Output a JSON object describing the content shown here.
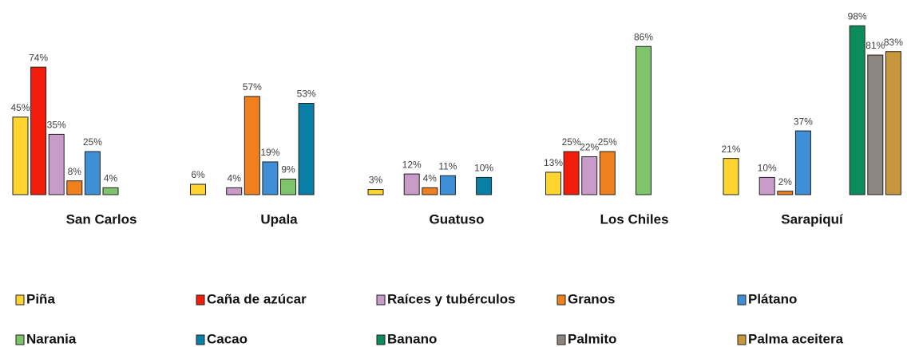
{
  "chart_data": {
    "type": "bar",
    "categories": [
      "San Carlos",
      "Upala",
      "Guatuso",
      "Los Chiles",
      "Sarapiquí"
    ],
    "ylim": [
      0,
      100
    ],
    "series": [
      {
        "name": "Piña",
        "color": "#FFD42E",
        "values": [
          45,
          6,
          3,
          13,
          21
        ],
        "value_labels": [
          "45%",
          "6%",
          "3%",
          "13%",
          "21%"
        ]
      },
      {
        "name": "Caña de azúcar",
        "color": "#F21C0A",
        "values": [
          74,
          null,
          null,
          25,
          null
        ],
        "value_labels": [
          "74%",
          null,
          null,
          "25%",
          null
        ]
      },
      {
        "name": "Raíces y tubérculos",
        "color": "#C89BC8",
        "values": [
          35,
          4,
          12,
          22,
          10
        ],
        "value_labels": [
          "35%",
          "4%",
          "12%",
          "22%",
          "10%"
        ]
      },
      {
        "name": "Granos",
        "color": "#F0801E",
        "values": [
          8,
          57,
          4,
          25,
          2
        ],
        "value_labels": [
          "8%",
          "57%",
          "4%",
          "25%",
          "2%"
        ]
      },
      {
        "name": "Plátano",
        "color": "#3E8FD6",
        "values": [
          25,
          19,
          11,
          null,
          37
        ],
        "value_labels": [
          "25%",
          "19%",
          "11%",
          null,
          "37%"
        ]
      },
      {
        "name": "Narania",
        "color": "#7DC46B",
        "values": [
          4,
          9,
          null,
          86,
          null
        ],
        "value_labels": [
          "4%",
          "9%",
          null,
          "86%",
          null
        ]
      },
      {
        "name": "Cacao",
        "color": "#0A7FA6",
        "values": [
          null,
          53,
          10,
          null,
          null
        ],
        "value_labels": [
          null,
          "53%",
          "10%",
          null,
          null
        ]
      },
      {
        "name": "Banano",
        "color": "#0C8C5C",
        "values": [
          null,
          null,
          null,
          null,
          98
        ],
        "value_labels": [
          null,
          null,
          null,
          null,
          "98%"
        ]
      },
      {
        "name": "Palmito",
        "color": "#8C8580",
        "values": [
          null,
          null,
          null,
          null,
          81
        ],
        "value_labels": [
          null,
          null,
          null,
          null,
          "81%"
        ]
      },
      {
        "name": "Palma aceitera",
        "color": "#C8963C",
        "values": [
          null,
          null,
          null,
          null,
          83
        ],
        "value_labels": [
          null,
          null,
          null,
          null,
          "83%"
        ]
      }
    ]
  }
}
